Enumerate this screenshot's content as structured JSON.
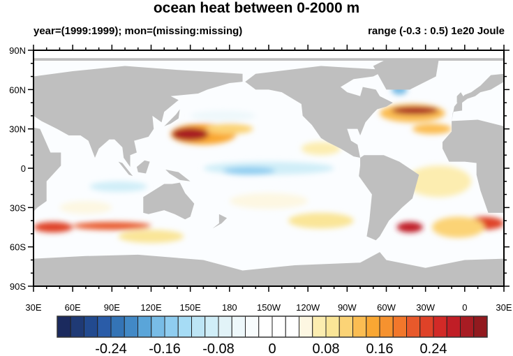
{
  "chart_data": {
    "type": "heatmap",
    "title": "ocean heat between 0-2000 m",
    "subtitle_left": "year=(1999:1999); mon=(missing:missing)",
    "subtitle_right": "range (-0.3 : 0.5) 1e20 Joule",
    "x_ticks": [
      "30E",
      "60E",
      "90E",
      "120E",
      "150E",
      "180",
      "150W",
      "120W",
      "90W",
      "60W",
      "30W",
      "0",
      "30E"
    ],
    "y_ticks": [
      "90N",
      "60N",
      "30N",
      "0",
      "30S",
      "60S",
      "90S"
    ],
    "xlim": [
      30,
      390
    ],
    "ylim": [
      -90,
      90
    ],
    "colorbar": {
      "levels_min": -0.3,
      "levels_max": 0.3,
      "level_step": 0.02,
      "labels": [
        {
          "value": -0.24,
          "text": "-0.24"
        },
        {
          "value": -0.16,
          "text": "-0.16"
        },
        {
          "value": -0.08,
          "text": "-0.08"
        },
        {
          "value": 0,
          "text": "0"
        },
        {
          "value": 0.08,
          "text": "0.08"
        },
        {
          "value": 0.16,
          "text": "0.16"
        },
        {
          "value": 0.24,
          "text": "0.24"
        }
      ],
      "colors": [
        "#1b2a5e",
        "#1f3a75",
        "#224a8f",
        "#2a5ca8",
        "#3474b6",
        "#4289c6",
        "#5aa5d9",
        "#78bce6",
        "#8fcdf0",
        "#a6dcf5",
        "#bde5f5",
        "#d0eef8",
        "#e2f3f8",
        "#eef8fb",
        "#f8fcfd",
        "#ffffff",
        "#ffffff",
        "#ffffff",
        "#fdf7e2",
        "#fcedb0",
        "#fae597",
        "#fbd376",
        "#fbbd52",
        "#f9a733",
        "#f6922f",
        "#f2772b",
        "#e8592b",
        "#df4228",
        "#d22a27",
        "#c01e26",
        "#a81c23",
        "#921a1f"
      ]
    },
    "anomaly_regions": [
      {
        "lon": 160,
        "lat": 26,
        "rlon": 25,
        "rlat": 8,
        "value": 0.14
      },
      {
        "lon": 150,
        "lat": 26,
        "rlon": 14,
        "rlat": 5,
        "value": 0.28
      },
      {
        "lon": 180,
        "lat": 30,
        "rlon": 18,
        "rlat": 4,
        "value": 0.1
      },
      {
        "lon": 175,
        "lat": 40,
        "rlon": 25,
        "rlat": 4,
        "value": -0.06
      },
      {
        "lon": 210,
        "lat": 0,
        "rlon": 50,
        "rlat": 5,
        "value": -0.09
      },
      {
        "lon": 195,
        "lat": -2,
        "rlon": 20,
        "rlat": 3,
        "value": -0.14
      },
      {
        "lon": 95,
        "lat": -14,
        "rlon": 22,
        "rlat": 4,
        "value": -0.08
      },
      {
        "lon": 310,
        "lat": 60,
        "rlon": 6,
        "rlat": 4,
        "value": -0.16
      },
      {
        "lon": 320,
        "lat": 42,
        "rlon": 25,
        "rlat": 7,
        "value": 0.12
      },
      {
        "lon": 322,
        "lat": 44,
        "rlon": 18,
        "rlat": 3,
        "value": 0.28
      },
      {
        "lon": 335,
        "lat": 30,
        "rlon": 15,
        "rlat": 4,
        "value": 0.12
      },
      {
        "lon": 340,
        "lat": -10,
        "rlon": 25,
        "rlat": 12,
        "value": 0.06
      },
      {
        "lon": 45,
        "lat": -45,
        "rlon": 15,
        "rlat": 4,
        "value": 0.22
      },
      {
        "lon": 90,
        "lat": -44,
        "rlon": 30,
        "rlat": 3,
        "value": 0.2
      },
      {
        "lon": 120,
        "lat": -52,
        "rlon": 25,
        "rlat": 5,
        "value": 0.08
      },
      {
        "lon": 250,
        "lat": -40,
        "rlon": 25,
        "rlat": 6,
        "value": 0.08
      },
      {
        "lon": 318,
        "lat": -45,
        "rlon": 10,
        "rlat": 4,
        "value": 0.26
      },
      {
        "lon": 375,
        "lat": -42,
        "rlon": 15,
        "rlat": 5,
        "value": 0.22
      },
      {
        "lon": 355,
        "lat": -45,
        "rlon": 20,
        "rlat": 8,
        "value": 0.1
      },
      {
        "lon": 210,
        "lat": -25,
        "rlon": 30,
        "rlat": 6,
        "value": 0.05
      },
      {
        "lon": 70,
        "lat": -30,
        "rlon": 20,
        "rlat": 5,
        "value": 0.05
      },
      {
        "lon": 250,
        "lat": 15,
        "rlon": 15,
        "rlat": 5,
        "value": 0.06
      }
    ]
  }
}
